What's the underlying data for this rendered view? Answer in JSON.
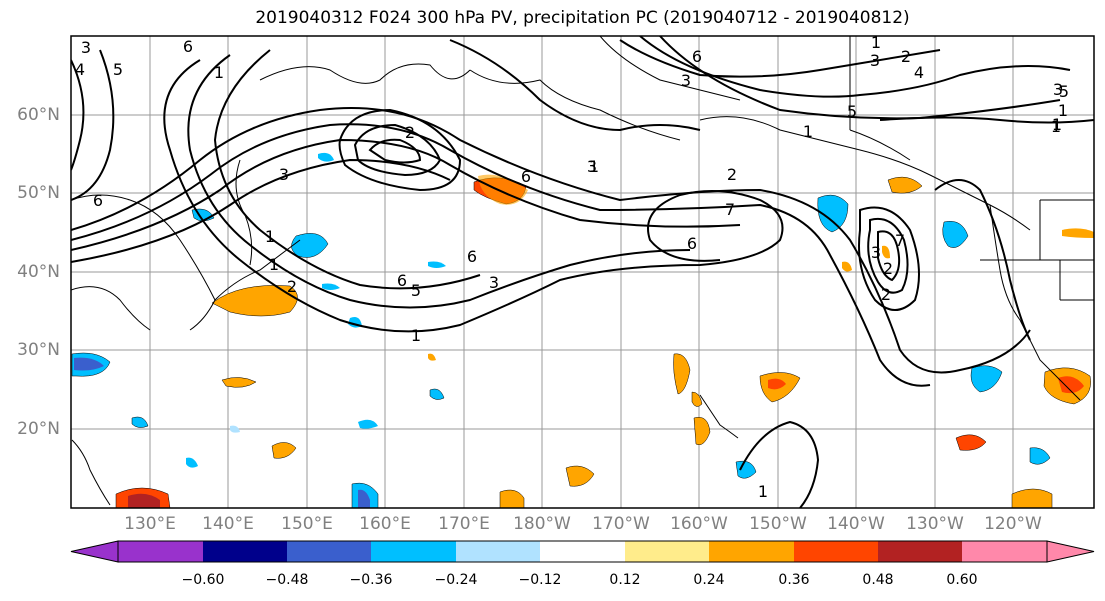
{
  "title": "2019040312 F024 300 hPa PV, precipitation PC (2019040712 - 2019040812)",
  "lat_labels": [
    "60°N",
    "50°N",
    "40°N",
    "30°N",
    "20°N"
  ],
  "lon_labels": [
    "130°E",
    "140°E",
    "150°E",
    "160°E",
    "170°E",
    "180°W",
    "170°W",
    "160°W",
    "150°W",
    "140°W",
    "130°W",
    "120°W"
  ],
  "colorbar": {
    "ticks": [
      "−0.60",
      "−0.48",
      "−0.36",
      "−0.24",
      "−0.12",
      "0.12",
      "0.24",
      "0.36",
      "0.48",
      "0.60"
    ],
    "colors": [
      "#9932CC",
      "#00008B",
      "#3A5FCD",
      "#00BFFF",
      "#B0E2FF",
      "#FFFFFF",
      "#FFEC8B",
      "#FFA500",
      "#FF4500",
      "#B22222",
      "#FF88AA"
    ]
  },
  "contour_labels": [
    "5",
    "4",
    "3",
    "1",
    "6",
    "6",
    "2",
    "1",
    "7",
    "6",
    "1",
    "2",
    "1",
    "3",
    "1",
    "6",
    "5",
    "3",
    "6",
    "1",
    "7",
    "6",
    "3",
    "2",
    "1",
    "6",
    "2",
    "3",
    "2",
    "1",
    "5",
    "1",
    "1",
    "3",
    "3",
    "2",
    "4",
    "5",
    "3",
    "1"
  ]
}
